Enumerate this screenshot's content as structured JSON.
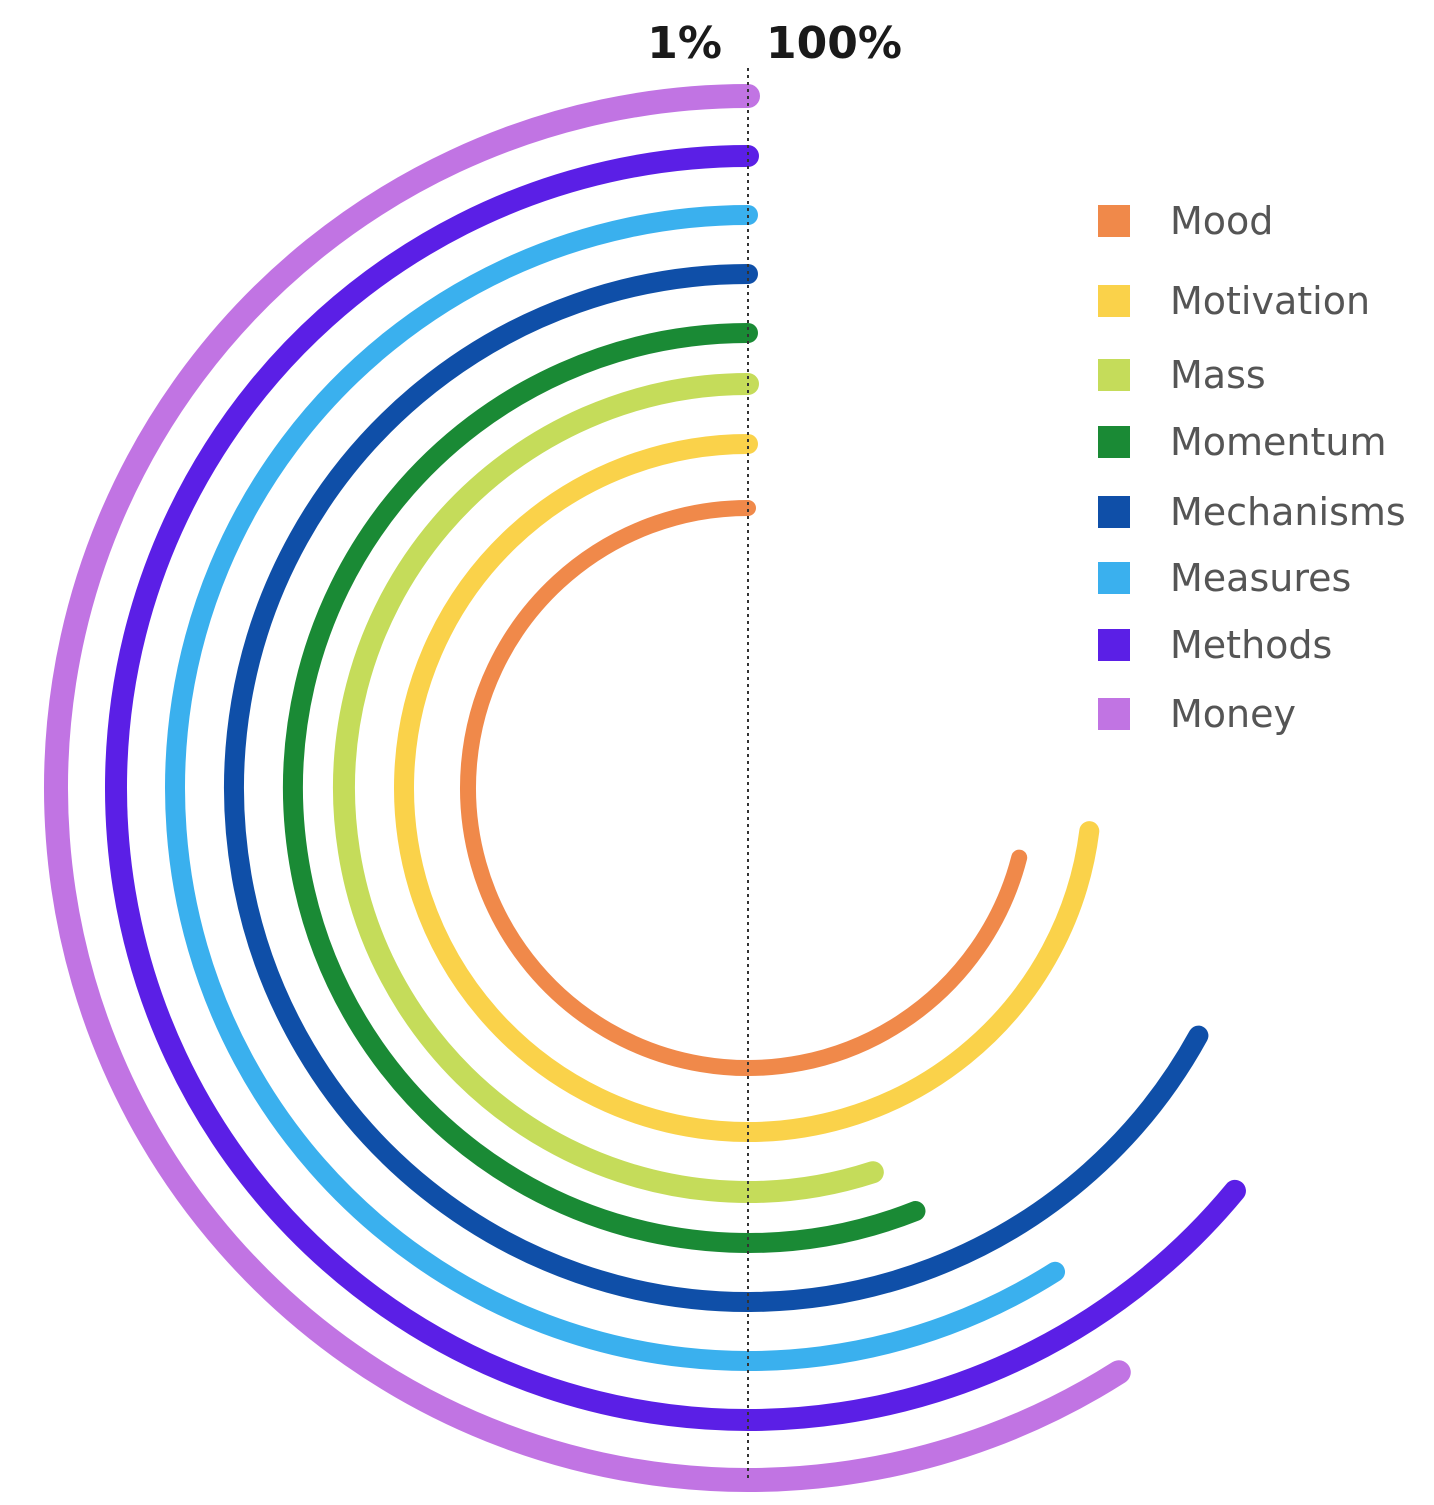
{
  "chart_data": {
    "type": "radial-bar",
    "title": "",
    "scale_start_label": "1%",
    "scale_end_label": "100%",
    "grid": false,
    "legend_position": "right",
    "series": [
      {
        "name": "Mood",
        "value": 71,
        "color": "#f0894a"
      },
      {
        "name": "Motivation",
        "value": 73,
        "color": "#fad24a"
      },
      {
        "name": "Mass",
        "value": 55,
        "color": "#c5dc5a"
      },
      {
        "name": "Momentum",
        "value": 56,
        "color": "#1a8a35"
      },
      {
        "name": "Mechanisms",
        "value": 67,
        "color": "#0f4fa8"
      },
      {
        "name": "Measures",
        "value": 59,
        "color": "#3ab0ee"
      },
      {
        "name": "Methods",
        "value": 64,
        "color": "#5b1fe6"
      },
      {
        "name": "Money",
        "value": 59,
        "color": "#c174e3"
      }
    ]
  }
}
